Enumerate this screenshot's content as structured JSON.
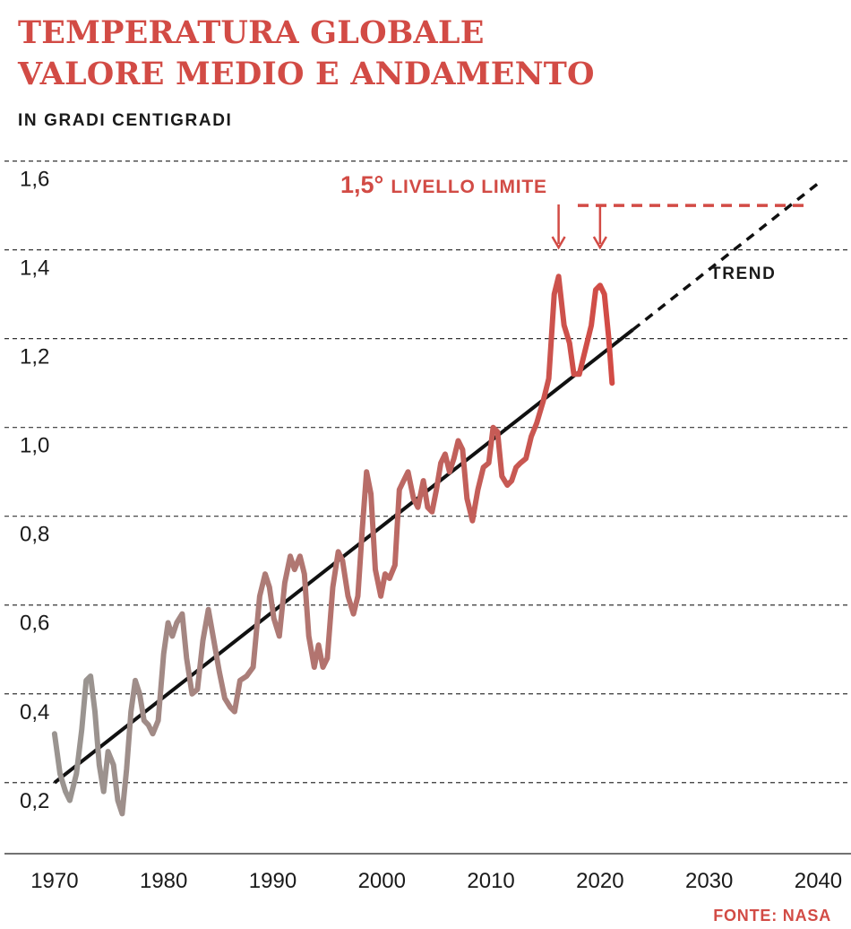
{
  "title_line1": "TEMPERATURA GLOBALE",
  "title_line2": "VALORE MEDIO E ANDAMENTO",
  "unit_label": "IN GRADI CENTIGRADI",
  "source": "FONTE: NASA",
  "colors": {
    "title": "#d24b45",
    "series_start": "#9a9490",
    "series_end": "#d24b45",
    "trend": "#111111",
    "grid": "#333333"
  },
  "chart_data": {
    "type": "line",
    "title": "TEMPERATURA GLOBALE VALORE MEDIO E ANDAMENTO",
    "ylabel": "IN GRADI CENTIGRADI",
    "xlim": [
      1965,
      2043
    ],
    "ylim": [
      0.04,
      1.68
    ],
    "x_ticks": [
      1970,
      1980,
      1990,
      2000,
      2010,
      2020,
      2030,
      2040
    ],
    "x_tick_labels": [
      "1970",
      "1980",
      "1990",
      "2000",
      "2010",
      "2020",
      "2030",
      "2040"
    ],
    "y_ticks": [
      0.2,
      0.4,
      0.6,
      0.8,
      1.0,
      1.2,
      1.4,
      1.6
    ],
    "y_tick_labels": [
      "0,2",
      "0,4",
      "0,6",
      "0,8",
      "1,0",
      "1,2",
      "1,4",
      "1,6"
    ],
    "grid": "horizontal dashed",
    "series": [
      {
        "points": [
          [
            1970.0,
            0.31
          ],
          [
            1970.5,
            0.22
          ],
          [
            1971.0,
            0.18
          ],
          [
            1971.4,
            0.16
          ],
          [
            1972.0,
            0.22
          ],
          [
            1972.5,
            0.32
          ],
          [
            1972.9,
            0.43
          ],
          [
            1973.3,
            0.44
          ],
          [
            1973.7,
            0.36
          ],
          [
            1974.1,
            0.24
          ],
          [
            1974.5,
            0.18
          ],
          [
            1974.9,
            0.27
          ],
          [
            1975.4,
            0.24
          ],
          [
            1975.8,
            0.16
          ],
          [
            1976.2,
            0.13
          ],
          [
            1976.6,
            0.23
          ],
          [
            1977.0,
            0.36
          ],
          [
            1977.4,
            0.43
          ],
          [
            1977.8,
            0.4
          ],
          [
            1978.2,
            0.34
          ],
          [
            1978.6,
            0.33
          ],
          [
            1979.0,
            0.31
          ],
          [
            1979.5,
            0.34
          ],
          [
            1980.0,
            0.49
          ],
          [
            1980.4,
            0.56
          ],
          [
            1980.8,
            0.53
          ],
          [
            1981.2,
            0.56
          ],
          [
            1981.7,
            0.58
          ],
          [
            1982.1,
            0.48
          ],
          [
            1982.6,
            0.4
          ],
          [
            1983.1,
            0.41
          ],
          [
            1983.6,
            0.52
          ],
          [
            1984.1,
            0.59
          ],
          [
            1984.6,
            0.52
          ],
          [
            1985.1,
            0.45
          ],
          [
            1985.6,
            0.39
          ],
          [
            1986.1,
            0.37
          ],
          [
            1986.5,
            0.36
          ],
          [
            1987.0,
            0.43
          ],
          [
            1987.6,
            0.44
          ],
          [
            1988.2,
            0.46
          ],
          [
            1988.8,
            0.62
          ],
          [
            1989.3,
            0.67
          ],
          [
            1989.7,
            0.64
          ],
          [
            1990.1,
            0.57
          ],
          [
            1990.6,
            0.53
          ],
          [
            1991.1,
            0.65
          ],
          [
            1991.6,
            0.71
          ],
          [
            1992.0,
            0.68
          ],
          [
            1992.5,
            0.71
          ],
          [
            1992.9,
            0.67
          ],
          [
            1993.3,
            0.53
          ],
          [
            1993.8,
            0.46
          ],
          [
            1994.2,
            0.51
          ],
          [
            1994.6,
            0.46
          ],
          [
            1995.0,
            0.48
          ],
          [
            1995.5,
            0.64
          ],
          [
            1996.0,
            0.72
          ],
          [
            1996.4,
            0.7
          ],
          [
            1996.9,
            0.62
          ],
          [
            1997.4,
            0.58
          ],
          [
            1997.8,
            0.62
          ],
          [
            1998.2,
            0.77
          ],
          [
            1998.6,
            0.9
          ],
          [
            1999.0,
            0.85
          ],
          [
            1999.4,
            0.68
          ],
          [
            1999.9,
            0.62
          ],
          [
            2000.3,
            0.67
          ],
          [
            2000.7,
            0.66
          ],
          [
            2001.2,
            0.69
          ],
          [
            2001.6,
            0.86
          ],
          [
            2002.0,
            0.88
          ],
          [
            2002.4,
            0.9
          ],
          [
            2002.9,
            0.84
          ],
          [
            2003.3,
            0.82
          ],
          [
            2003.8,
            0.88
          ],
          [
            2004.2,
            0.82
          ],
          [
            2004.6,
            0.81
          ],
          [
            2005.0,
            0.86
          ],
          [
            2005.4,
            0.92
          ],
          [
            2005.8,
            0.94
          ],
          [
            2006.2,
            0.9
          ],
          [
            2006.6,
            0.93
          ],
          [
            2007.0,
            0.97
          ],
          [
            2007.4,
            0.95
          ],
          [
            2007.8,
            0.84
          ],
          [
            2008.3,
            0.79
          ],
          [
            2008.8,
            0.86
          ],
          [
            2009.3,
            0.91
          ],
          [
            2009.8,
            0.92
          ],
          [
            2010.2,
            1.0
          ],
          [
            2010.6,
            0.99
          ],
          [
            2011.0,
            0.89
          ],
          [
            2011.5,
            0.87
          ],
          [
            2011.9,
            0.88
          ],
          [
            2012.3,
            0.91
          ],
          [
            2012.7,
            0.92
          ],
          [
            2013.2,
            0.93
          ],
          [
            2013.7,
            0.98
          ],
          [
            2014.2,
            1.01
          ],
          [
            2014.8,
            1.06
          ],
          [
            2015.3,
            1.11
          ],
          [
            2015.8,
            1.3
          ],
          [
            2016.2,
            1.34
          ],
          [
            2016.7,
            1.23
          ],
          [
            2017.2,
            1.19
          ],
          [
            2017.6,
            1.12
          ],
          [
            2018.1,
            1.12
          ],
          [
            2018.7,
            1.18
          ],
          [
            2019.2,
            1.23
          ],
          [
            2019.6,
            1.31
          ],
          [
            2020.0,
            1.32
          ],
          [
            2020.4,
            1.3
          ],
          [
            2020.8,
            1.2
          ],
          [
            2021.1,
            1.1
          ]
        ]
      }
    ],
    "trend": {
      "label": "TREND",
      "solid_from": [
        1970.0,
        0.2
      ],
      "solid_to": [
        2023.0,
        1.22
      ],
      "dashed_to": [
        2040.0,
        1.55
      ]
    },
    "limit": {
      "value": 1.5,
      "label_value": "1,5°",
      "label_text": "LIVELLO LIMITE",
      "peak_years": [
        2016.2,
        2020.0
      ]
    }
  }
}
